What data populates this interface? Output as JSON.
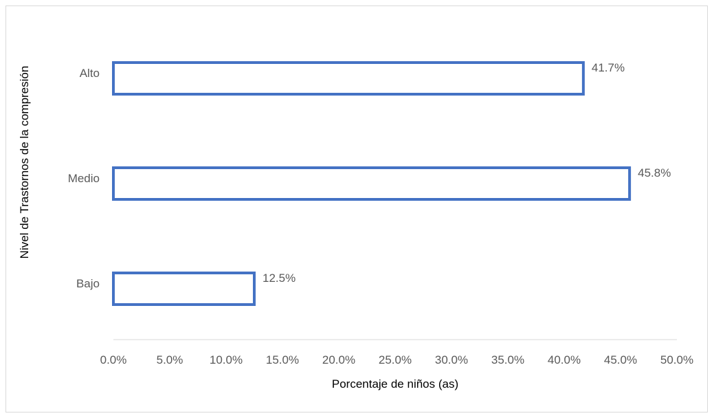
{
  "chart_data": {
    "type": "bar",
    "orientation": "horizontal",
    "categories": [
      "Bajo",
      "Medio",
      "Alto"
    ],
    "values": [
      12.5,
      45.8,
      41.7
    ],
    "data_labels": [
      "12.5%",
      "45.8%",
      "41.7%"
    ],
    "xlabel": "Porcentaje de niños (as)",
    "ylabel": "Nivel de Trastornos de la compresión",
    "xlim": [
      0,
      50
    ],
    "xticks": [
      0,
      5,
      10,
      15,
      20,
      25,
      30,
      35,
      40,
      45,
      50
    ],
    "xtick_labels": [
      "0.0%",
      "5.0%",
      "10.0%",
      "15.0%",
      "20.0%",
      "25.0%",
      "30.0%",
      "35.0%",
      "40.0%",
      "45.0%",
      "50.0%"
    ],
    "grid": false,
    "legend": "none",
    "bar_style": "outline",
    "bar_color": "#4472c4"
  }
}
